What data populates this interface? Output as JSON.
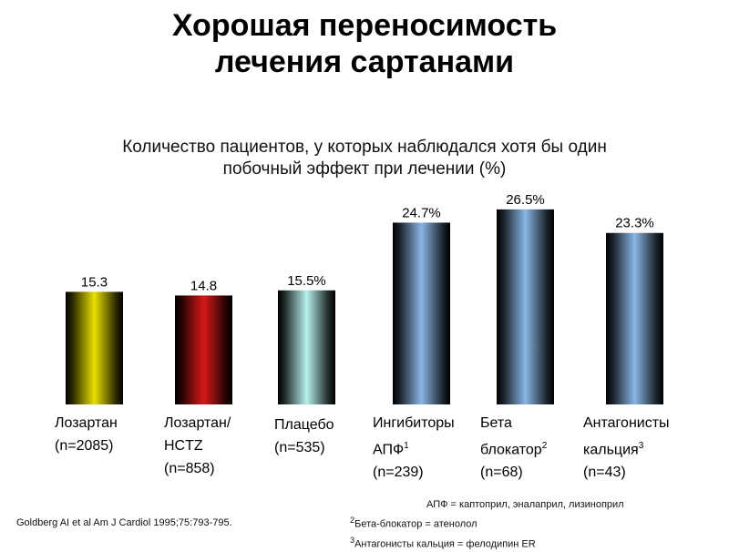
{
  "title_line1": "Хорошая переносимость",
  "title_line2": "лечения сартанами",
  "chart_data": {
    "type": "bar",
    "title_line1": "Количество пациентов, у которых наблюдался хотя бы один",
    "title_line2": "побочный эффект при лечении (%)",
    "categories": [
      {
        "line1": "Лозартан",
        "line2": "(n=2085)",
        "line3": "",
        "sup": ""
      },
      {
        "line1": "Лозартан/",
        "line2": "HCTZ",
        "line3": "(n=858)",
        "sup": ""
      },
      {
        "line1": "Плацебо",
        "line2": "(n=535)",
        "line3": "",
        "sup": ""
      },
      {
        "line1": "Ингибиторы",
        "line2": "АПФ",
        "line3": "(n=239)",
        "sup": "1"
      },
      {
        "line1": "Бета",
        "line2": "блокатор",
        "line3": "(n=68)",
        "sup": "2"
      },
      {
        "line1": "Антагонисты",
        "line2": "кальция",
        "line3": "(n=43)",
        "sup": "3"
      }
    ],
    "values": [
      15.3,
      14.8,
      15.5,
      24.7,
      26.5,
      23.3
    ],
    "value_labels": [
      "15.3",
      "14.8",
      "15.5%",
      "24.7%",
      "26.5%",
      "23.3%"
    ],
    "colors": [
      "#e8e000",
      "#d81818",
      "#b6f0ea",
      "#8ab6e6",
      "#8ab6e6",
      "#8ab6e6"
    ],
    "ylim": [
      0,
      30
    ],
    "grid": false
  },
  "citation": "Goldberg AI et al Am J Cardiol 1995;75:793-795.",
  "footnotes": {
    "ace": "АПФ = каптоприл, эналаприл, лизиноприл",
    "beta_sup": "2",
    "beta": "Бета-блокатор =  атенолол",
    "ca_sup": "3",
    "ca": "Антагонисты кальция = фелодипин ER"
  }
}
